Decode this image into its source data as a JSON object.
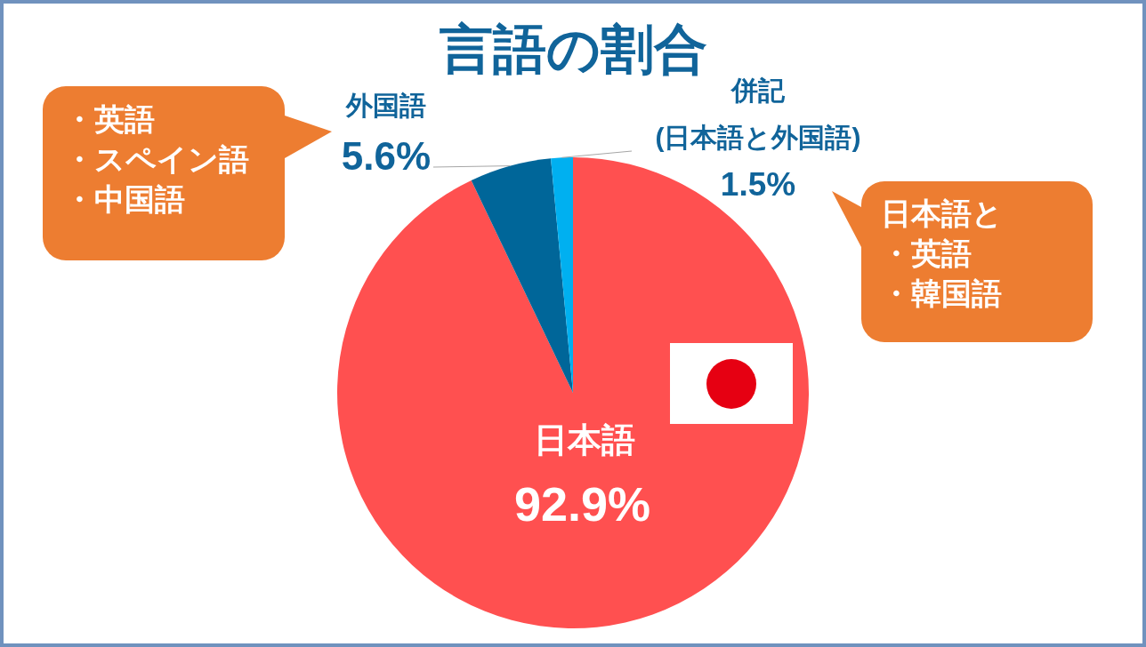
{
  "chart_data": {
    "type": "pie",
    "title": "言語の割合",
    "categories": [
      "日本語",
      "外国語",
      "併記\n(日本語と外国語)"
    ],
    "values": [
      92.9,
      5.6,
      1.5
    ],
    "colors": [
      "#ff5050",
      "#006699",
      "#00b0f0"
    ],
    "value_labels": [
      "92.9%",
      "5.6%",
      "1.5%"
    ],
    "annotations": [
      "・英語",
      "・スペイン語",
      "・中国語",
      "日本語と",
      "・英語",
      "・韓国語"
    ]
  }
}
